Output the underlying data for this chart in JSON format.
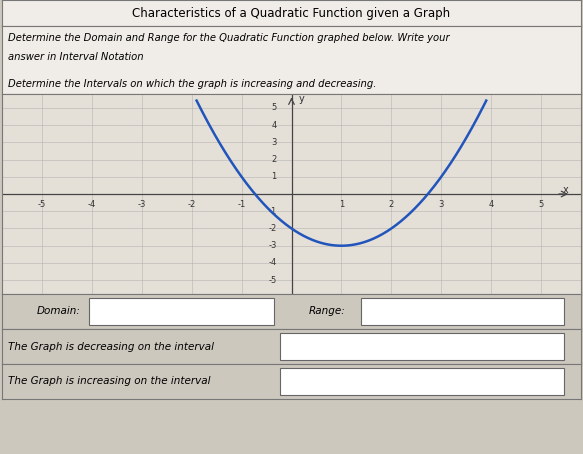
{
  "title": "Characteristics of a Quadratic Function given a Graph",
  "line1": "Determine the Domain and Range for the Quadratic Function graphed below. Write your",
  "line2": "answer in Interval Notation",
  "line3": "Determine the Intervals on which the graph is increasing and decreasing.",
  "domain_label": "Domain:",
  "range_label": "Range:",
  "decreasing_label": "The Graph is decreasing on the interval",
  "increasing_label": "The Graph is increasing on the interval",
  "bg_color": "#cdc8be",
  "header_bg": "#f0ede8",
  "graph_bg": "#e4e0d8",
  "parabola_color": "#2255bb",
  "axis_color": "#444444",
  "grid_color": "#aaaaaa",
  "tick_color": "#333333",
  "border_color": "#777777",
  "x_range": [
    -5,
    5
  ],
  "y_range": [
    -5,
    5
  ],
  "vertex_x": 1,
  "vertex_y": -3,
  "parabola_a": 1,
  "fig_w": 5.83,
  "fig_h": 4.54,
  "dpi": 100
}
